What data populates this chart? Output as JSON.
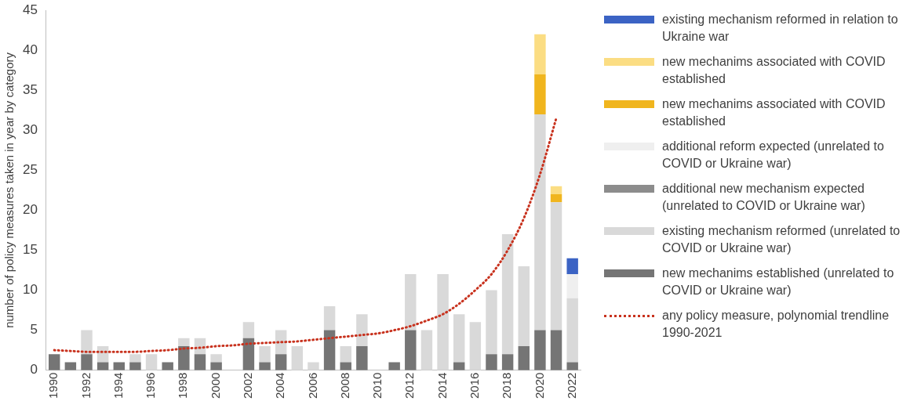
{
  "chart_data": {
    "type": "bar",
    "stacked": true,
    "ylabel": "number of policy measures taken in year by category",
    "categories": [
      "1990",
      null,
      "1992",
      null,
      "1994",
      null,
      "1996",
      null,
      "1998",
      null,
      "2000",
      null,
      "2002",
      null,
      "2004",
      null,
      "2006",
      null,
      "2008",
      null,
      "2010",
      null,
      "2012",
      null,
      "2014",
      null,
      "2016",
      null,
      "2018",
      null,
      "2020",
      null,
      "2022"
    ],
    "ylim": [
      0,
      45
    ],
    "yticks": [
      0,
      5,
      10,
      15,
      20,
      25,
      30,
      35,
      40,
      45
    ],
    "grid": false,
    "legend": "right",
    "series": [
      {
        "name": "new mechanims established (unrelated to COVID or Ukraine war)",
        "color": "#757575",
        "values": [
          2,
          1,
          2,
          1,
          1,
          1,
          0,
          1,
          3,
          2,
          1,
          0,
          4,
          1,
          2,
          0,
          0,
          5,
          1,
          3,
          0,
          1,
          5,
          0,
          0,
          1,
          0,
          2,
          2,
          3,
          5,
          5,
          1
        ]
      },
      {
        "name": "existing mechanism reformed (unrelated to COVID or Ukraine war)",
        "color": "#d9d9d9",
        "values": [
          0,
          0,
          3,
          2,
          0,
          1,
          2,
          0,
          1,
          2,
          1,
          0,
          2,
          2,
          3,
          3,
          1,
          3,
          2,
          4,
          0,
          0,
          7,
          5,
          12,
          6,
          6,
          8,
          15,
          10,
          27,
          16,
          8
        ]
      },
      {
        "name": "additional new mechanism expected (unrelated to COVID or Ukraine war)",
        "color": "#8c8c8c",
        "values": [
          0,
          0,
          0,
          0,
          0,
          0,
          0,
          0,
          0,
          0,
          0,
          0,
          0,
          0,
          0,
          0,
          0,
          0,
          0,
          0,
          0,
          0,
          0,
          0,
          0,
          0,
          0,
          0,
          0,
          0,
          0,
          0,
          0
        ]
      },
      {
        "name": "additional reform expected (unrelated to COVID or Ukraine war)",
        "color": "#efefef",
        "values": [
          0,
          0,
          0,
          0,
          0,
          0,
          0,
          0,
          0,
          0,
          0,
          0,
          0,
          0,
          0,
          0,
          0,
          0,
          0,
          0,
          0,
          0,
          0,
          0,
          0,
          0,
          0,
          0,
          0,
          0,
          0,
          0,
          3
        ]
      },
      {
        "name": "new mechanims associated with COVID established",
        "color": "#f0b51e",
        "values": [
          0,
          0,
          0,
          0,
          0,
          0,
          0,
          0,
          0,
          0,
          0,
          0,
          0,
          0,
          0,
          0,
          0,
          0,
          0,
          0,
          0,
          0,
          0,
          0,
          0,
          0,
          0,
          0,
          0,
          0,
          5,
          1,
          0
        ]
      },
      {
        "name": "new mechanims associated with COVID established",
        "color": "#fbdd83",
        "values": [
          0,
          0,
          0,
          0,
          0,
          0,
          0,
          0,
          0,
          0,
          0,
          0,
          0,
          0,
          0,
          0,
          0,
          0,
          0,
          0,
          0,
          0,
          0,
          0,
          0,
          0,
          0,
          0,
          0,
          0,
          5,
          1,
          0
        ]
      },
      {
        "name": "existing mechanism reformed in relation to Ukraine war",
        "color": "#3b63c4",
        "values": [
          0,
          0,
          0,
          0,
          0,
          0,
          0,
          0,
          0,
          0,
          0,
          0,
          0,
          0,
          0,
          0,
          0,
          0,
          0,
          0,
          0,
          0,
          0,
          0,
          0,
          0,
          0,
          0,
          0,
          0,
          0,
          0,
          2
        ]
      },
      {
        "name": "any policy measure, polynomial trendline 1990-2021",
        "type": "line",
        "line_style": "dotted",
        "marker": "none",
        "color": "#c8321e",
        "values": [
          2.5,
          2.4,
          2.3,
          2.3,
          2.3,
          2.3,
          2.4,
          2.5,
          2.7,
          2.8,
          3,
          3.1,
          3.3,
          3.4,
          3.5,
          3.6,
          3.8,
          4,
          4.2,
          4.4,
          4.6,
          5,
          5.5,
          6.2,
          7,
          8.3,
          10,
          12,
          15,
          19,
          24.5,
          31.5,
          null
        ]
      }
    ]
  }
}
